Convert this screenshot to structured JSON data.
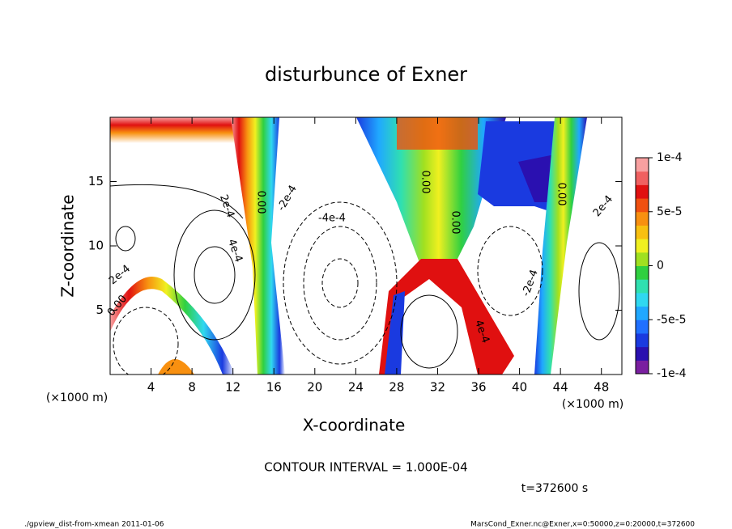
{
  "chart_data": {
    "type": "contour",
    "title": "disturbunce of Exner",
    "xlabel": "X-coordinate",
    "ylabel": "Z-coordinate",
    "x_unit": "(×1000 m)",
    "xlim": [
      0,
      50
    ],
    "ylim": [
      0,
      20
    ],
    "xticks": [
      4,
      8,
      12,
      16,
      20,
      24,
      28,
      32,
      36,
      40,
      44,
      48
    ],
    "yticks": [
      5,
      10,
      15
    ],
    "clim": [
      -0.0001,
      0.0001
    ],
    "cticks": [
      {
        "value": 0.0001,
        "label": "1e-4"
      },
      {
        "value": 5e-05,
        "label": "5e-5"
      },
      0,
      {
        "value": -5e-05,
        "label": "-5e-5"
      },
      {
        "value": -0.0001,
        "label": "-1e-4"
      }
    ],
    "colorbar_colors": [
      "#7a1fa0",
      "#2a10b0",
      "#1a3ae0",
      "#2070ff",
      "#20a8ff",
      "#30d8f0",
      "#30e0b0",
      "#30d040",
      "#a0e020",
      "#f0f020",
      "#f8c010",
      "#f89010",
      "#f05010",
      "#e01010",
      "#f06060",
      "#f8a0a0"
    ],
    "contour_labels": [
      "2e-4",
      "4e-4",
      "0.00",
      "-2e-4",
      "-4e-4",
      "0.00",
      "0.00",
      "0.00",
      "-2e-4",
      "2e-4",
      "4e-4",
      "2e-4",
      "0.00"
    ],
    "contour_interval": "CONTOUR INTERVAL = 1.000E-04",
    "time_label": "t=372600 s",
    "footer_left": "./gpview_dist-from-xmean  2011-01-06",
    "footer_right": "MarsCond_Exner.nc@Exner,x=0:50000,z=0:20000,t=372600"
  }
}
